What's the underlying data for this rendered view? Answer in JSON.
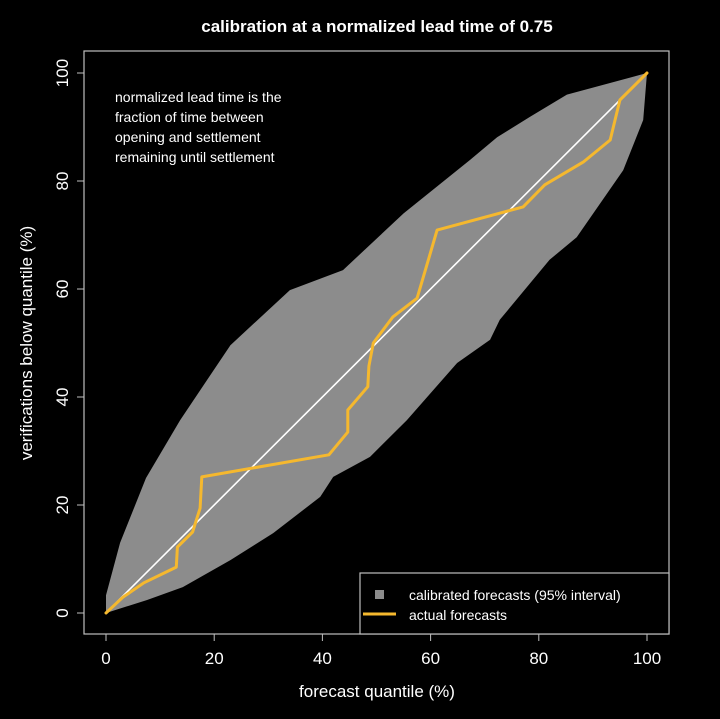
{
  "chart_data": {
    "type": "line",
    "title": "calibration at a normalized lead time of 0.75",
    "xlabel": "forecast quantile (%)",
    "ylabel": "verifications below quantile (%)",
    "xlim": [
      0,
      100
    ],
    "ylim": [
      0,
      100
    ],
    "xticks": [
      0,
      20,
      40,
      60,
      80,
      100
    ],
    "yticks": [
      0,
      20,
      40,
      60,
      80,
      100
    ],
    "grid": false,
    "annotation": [
      "normalized lead time is the",
      "fraction of time between",
      "opening and settlement",
      "remaining until settlement"
    ],
    "legend": {
      "placement": "bottom-right",
      "entries": [
        {
          "label": "calibrated forecasts (95% interval)",
          "kind": "square",
          "color": "#8c8c8c"
        },
        {
          "label": "actual forecasts",
          "kind": "line",
          "color": "#f5b82e"
        }
      ]
    },
    "colors": {
      "background": "#000000",
      "band": "#8c8c8c",
      "actual": "#f5b82e",
      "diagonal": "#ffffff",
      "axes": "#bfbfbf"
    },
    "band_upper": [
      [
        0,
        0
      ],
      [
        0,
        3.3
      ],
      [
        2.6,
        13
      ],
      [
        7.4,
        25
      ],
      [
        13.7,
        35.7
      ],
      [
        23,
        49.6
      ],
      [
        34,
        59.8
      ],
      [
        43.8,
        63.5
      ],
      [
        55,
        74
      ],
      [
        67.3,
        83.9
      ],
      [
        72.3,
        88.1
      ],
      [
        78.4,
        91.9
      ],
      [
        85.2,
        96
      ],
      [
        100,
        100
      ]
    ],
    "band_lower": [
      [
        0,
        0
      ],
      [
        7.6,
        2.4
      ],
      [
        14.2,
        4.8
      ],
      [
        23,
        9.8
      ],
      [
        30.9,
        14.8
      ],
      [
        39.6,
        21.5
      ],
      [
        42,
        25.2
      ],
      [
        48.8,
        28.9
      ],
      [
        55.6,
        35.7
      ],
      [
        64.9,
        46.3
      ],
      [
        71,
        50.6
      ],
      [
        72.8,
        54.3
      ],
      [
        82,
        65.4
      ],
      [
        87,
        69.6
      ],
      [
        95.6,
        82
      ],
      [
        99.3,
        91.3
      ],
      [
        100,
        100
      ]
    ],
    "diagonal": [
      [
        0,
        0
      ],
      [
        100,
        100
      ]
    ],
    "series": [
      {
        "name": "actual forecasts",
        "points": [
          [
            0,
            0
          ],
          [
            3.1,
            2.9
          ],
          [
            7,
            5.6
          ],
          [
            13,
            8.5
          ],
          [
            13.2,
            12.2
          ],
          [
            16,
            15
          ],
          [
            17.4,
            19.4
          ],
          [
            17.7,
            25.2
          ],
          [
            41.2,
            29.3
          ],
          [
            44.7,
            33.5
          ],
          [
            44.7,
            37.6
          ],
          [
            48.4,
            41.9
          ],
          [
            48.6,
            45.7
          ],
          [
            49.4,
            50
          ],
          [
            53,
            54.8
          ],
          [
            57.5,
            58.3
          ],
          [
            61.2,
            70.9
          ],
          [
            77.1,
            75.2
          ],
          [
            81.1,
            79.3
          ],
          [
            88.2,
            83.5
          ],
          [
            93.2,
            87.6
          ],
          [
            95,
            95
          ],
          [
            100,
            100
          ]
        ]
      }
    ]
  }
}
